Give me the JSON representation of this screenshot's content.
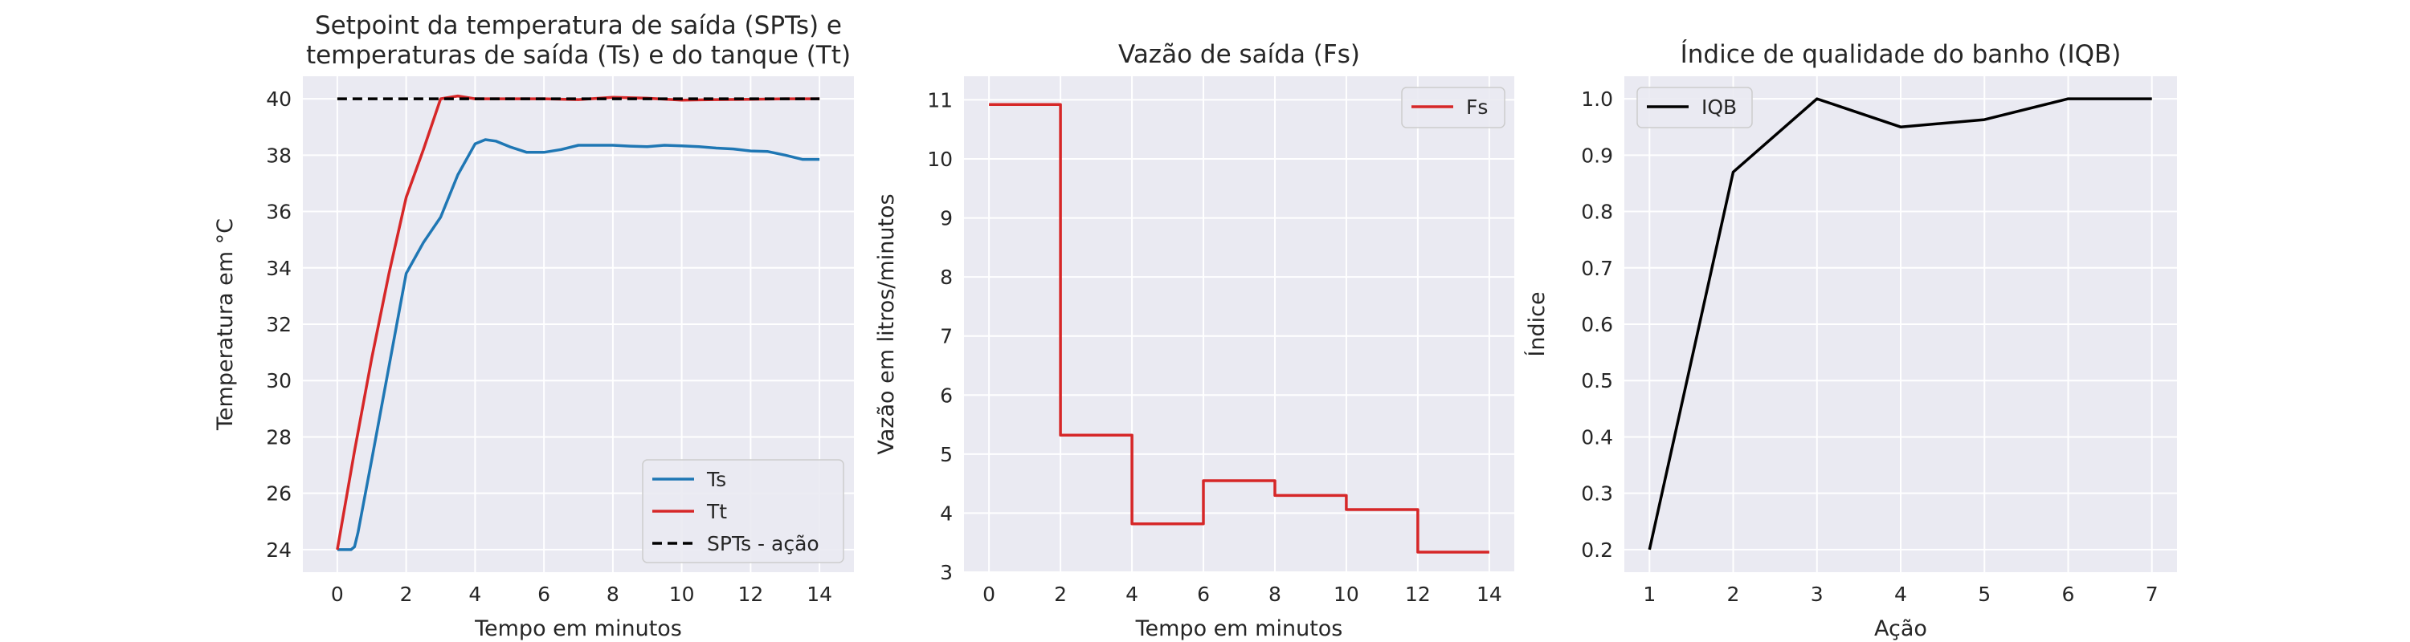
{
  "colors": {
    "background": "#eaeaf2",
    "grid": "#ffffff",
    "ts": "#1f77b4",
    "tt": "#d62728",
    "spts": "#000000",
    "fs": "#d62728",
    "iqb": "#000000"
  },
  "chart_data": [
    {
      "type": "line",
      "title_lines": [
        "Setpoint da temperatura de saída (SPTs) e",
        "temperaturas de saída (Ts) e do tanque (Tt)"
      ],
      "xlabel": "Tempo em minutos",
      "ylabel": "Temperatura em °C",
      "xlim": [
        -1,
        15
      ],
      "ylim": [
        23.2,
        40.8
      ],
      "xticks": [
        0,
        2,
        4,
        6,
        8,
        10,
        12,
        14
      ],
      "yticks": [
        24,
        26,
        28,
        30,
        32,
        34,
        36,
        38,
        40
      ],
      "grid": true,
      "legend": {
        "position": "lower-right"
      },
      "series": [
        {
          "name": "Ts",
          "color": "#1f77b4",
          "dash": "",
          "x": [
            0,
            0.4,
            0.5,
            0.6,
            1,
            1.5,
            2,
            2.5,
            3,
            3.5,
            4,
            4.3,
            4.6,
            5,
            5.5,
            6,
            6.5,
            7,
            7.5,
            8,
            8.5,
            9,
            9.5,
            10,
            10.5,
            11,
            11.5,
            12,
            12.5,
            13,
            13.5,
            14
          ],
          "y": [
            24,
            24,
            24.1,
            24.6,
            27.2,
            30.5,
            33.8,
            34.9,
            35.8,
            37.3,
            38.4,
            38.55,
            38.5,
            38.3,
            38.1,
            38.1,
            38.2,
            38.35,
            38.35,
            38.35,
            38.32,
            38.3,
            38.35,
            38.33,
            38.3,
            38.25,
            38.22,
            38.15,
            38.13,
            38.0,
            37.85,
            37.85
          ]
        },
        {
          "name": "Tt",
          "color": "#d62728",
          "dash": "",
          "x": [
            0,
            0.5,
            1,
            1.5,
            2,
            2.5,
            3,
            3.5,
            4,
            5,
            6,
            7,
            8,
            9,
            10,
            11,
            12,
            13,
            14
          ],
          "y": [
            24,
            27.5,
            30.8,
            33.8,
            36.5,
            38.2,
            40.0,
            40.1,
            40.0,
            40.0,
            40.0,
            39.97,
            40.05,
            40.02,
            39.95,
            39.97,
            39.98,
            40.0,
            40.0
          ]
        },
        {
          "name": "SPTs - ação",
          "color": "#000000",
          "dash": "12,7",
          "x": [
            0,
            14
          ],
          "y": [
            40,
            40
          ]
        }
      ]
    },
    {
      "type": "line",
      "title_lines": [
        "Vazão de saída (Fs)"
      ],
      "xlabel": "Tempo em minutos",
      "ylabel": "Vazão em litros/minutos",
      "xlim": [
        -0.7,
        14.7
      ],
      "ylim": [
        3,
        11.4
      ],
      "xticks": [
        0,
        2,
        4,
        6,
        8,
        10,
        12,
        14
      ],
      "yticks": [
        3,
        4,
        5,
        6,
        7,
        8,
        9,
        10,
        11
      ],
      "grid": true,
      "legend": {
        "position": "upper-right"
      },
      "series": [
        {
          "name": "Fs",
          "color": "#d62728",
          "dash": "",
          "x": [
            0,
            2,
            2,
            4,
            4,
            6,
            6,
            8,
            8,
            10,
            10,
            12,
            12,
            14
          ],
          "y": [
            10.92,
            10.92,
            5.32,
            5.32,
            3.82,
            3.82,
            4.55,
            4.55,
            4.3,
            4.3,
            4.06,
            4.06,
            3.34,
            3.34
          ]
        }
      ]
    },
    {
      "type": "line",
      "title_lines": [
        "Índice de qualidade do banho (IQB)"
      ],
      "xlabel": "Ação",
      "ylabel": "Índice",
      "xlim": [
        0.7,
        7.3
      ],
      "ylim": [
        0.16,
        1.04
      ],
      "xticks": [
        1,
        2,
        3,
        4,
        5,
        6,
        7
      ],
      "yticks": [
        0.2,
        0.3,
        0.4,
        0.5,
        0.6,
        0.7,
        0.8,
        0.9,
        1.0
      ],
      "ytick_labels": [
        "0.2",
        "0.3",
        "0.4",
        "0.5",
        "0.6",
        "0.7",
        "0.8",
        "0.9",
        "1.0"
      ],
      "grid": true,
      "legend": {
        "position": "upper-left"
      },
      "series": [
        {
          "name": "IQB",
          "color": "#000000",
          "dash": "",
          "x": [
            1,
            2,
            3,
            4,
            5,
            6,
            7
          ],
          "y": [
            0.2,
            0.87,
            1.0,
            0.95,
            0.963,
            1.0,
            1.0
          ]
        }
      ]
    }
  ]
}
